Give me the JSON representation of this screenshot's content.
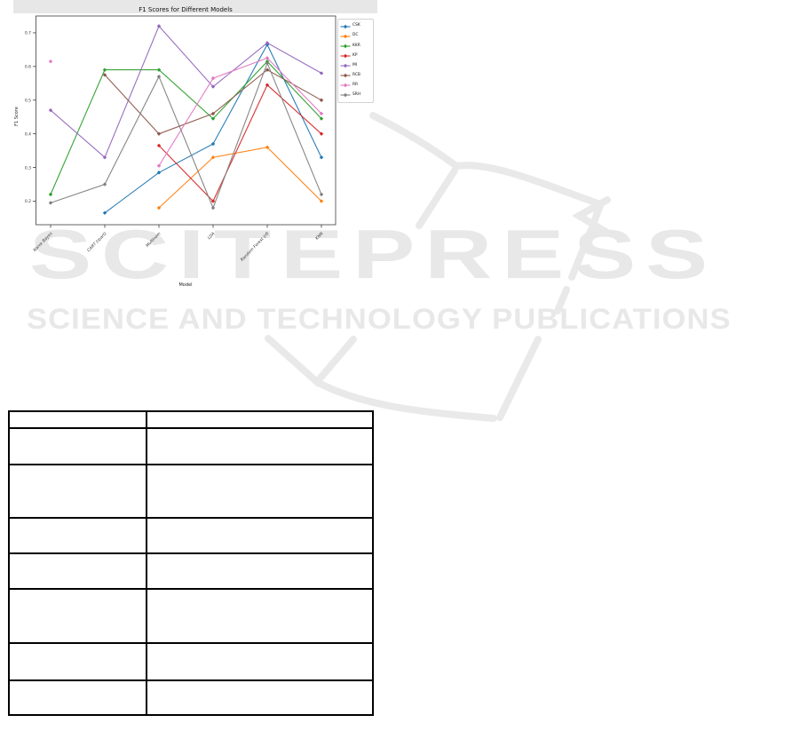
{
  "figure": {
    "title": "F1 Scores for Different Models",
    "xlabel": "Model",
    "ylabel": "F1 Score"
  },
  "chart_data": {
    "type": "line",
    "title": "F1 Scores for Different Models",
    "xlabel": "Model",
    "ylabel": "F1 Score",
    "categories": [
      "Naive Bayes",
      "CART (rpart)",
      "Multinom",
      "LDA",
      "Random Forest (rf)",
      "KNN"
    ],
    "y_ticks": [
      0.2,
      0.3,
      0.4,
      0.5,
      0.6,
      0.7
    ],
    "ylim": [
      0.13,
      0.75
    ],
    "grid": false,
    "legend_position": "upper-right-outside",
    "marker": "diamond",
    "series": [
      {
        "name": "CSK",
        "color": "#1f77b4",
        "values": [
          null,
          0.165,
          0.285,
          0.37,
          0.665,
          0.33
        ]
      },
      {
        "name": "DC",
        "color": "#ff7f0e",
        "values": [
          null,
          null,
          0.18,
          0.33,
          0.36,
          0.2
        ]
      },
      {
        "name": "KKR",
        "color": "#2ca02c",
        "values": [
          0.22,
          0.59,
          0.59,
          0.445,
          0.615,
          0.445
        ]
      },
      {
        "name": "KP",
        "color": "#d62728",
        "values": [
          null,
          null,
          0.365,
          0.2,
          0.545,
          0.4
        ]
      },
      {
        "name": "MI",
        "color": "#9467bd",
        "values": [
          0.47,
          0.33,
          0.72,
          0.54,
          0.67,
          0.58
        ]
      },
      {
        "name": "RCB",
        "color": "#8c564b",
        "values": [
          null,
          0.575,
          0.4,
          0.46,
          0.59,
          0.5
        ]
      },
      {
        "name": "RR",
        "color": "#e377c2",
        "values": [
          0.615,
          null,
          0.305,
          0.565,
          0.625,
          0.46
        ]
      },
      {
        "name": "SRH",
        "color": "#7f7f7f",
        "values": [
          0.195,
          0.25,
          0.57,
          0.18,
          0.61,
          0.22
        ]
      }
    ]
  },
  "watermark": {
    "brand": "SCITEPRESS",
    "tagline": "SCIENCE AND TECHNOLOGY PUBLICATIONS",
    "color": "#e8e8e8"
  },
  "table": {
    "rows": 8,
    "columns": 2,
    "cells": [
      [
        "",
        ""
      ],
      [
        "",
        ""
      ],
      [
        "",
        ""
      ],
      [
        "",
        ""
      ],
      [
        "",
        ""
      ],
      [
        "",
        ""
      ],
      [
        "",
        ""
      ],
      [
        "",
        ""
      ]
    ]
  }
}
